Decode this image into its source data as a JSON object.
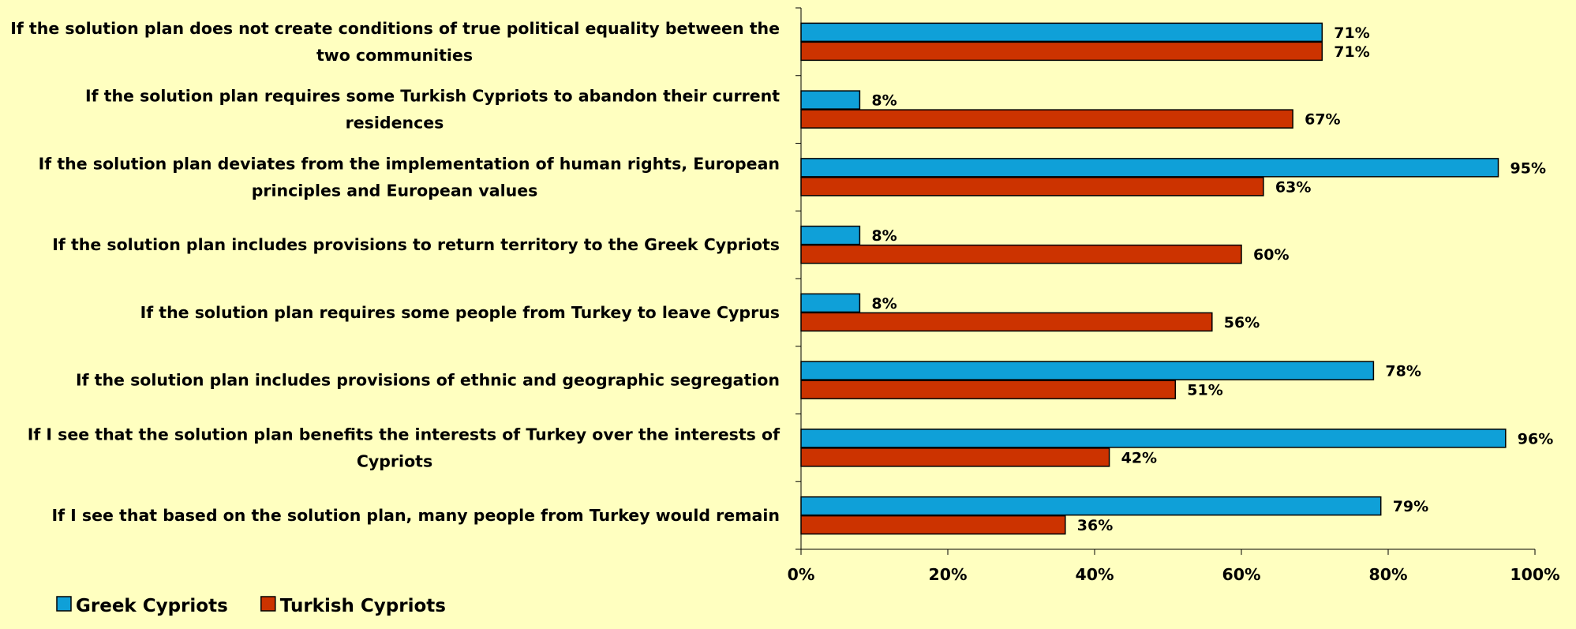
{
  "chart_data": {
    "type": "bar",
    "orientation": "horizontal",
    "categories": [
      [
        "If the solution plan does not create conditions of true political equality between the",
        "two communities"
      ],
      [
        "If the solution plan requires some Turkish Cypriots to abandon their current",
        "residences"
      ],
      [
        "If the solution plan deviates from the implementation of human rights, European",
        "principles and European values"
      ],
      [
        "If the solution plan includes provisions to return territory to the Greek Cypriots"
      ],
      [
        "If the solution plan requires some people from Turkey to leave Cyprus"
      ],
      [
        "If the solution plan includes provisions of ethnic and geographic segregation"
      ],
      [
        "If I see that the solution plan benefits the interests of Turkey over the interests of",
        "Cypriots"
      ],
      [
        "If I see that based on the solution plan, many people from Turkey would remain"
      ]
    ],
    "series": [
      {
        "name": "Greek Cypriots",
        "color": "#0FA0D8",
        "values": [
          71,
          8,
          95,
          8,
          8,
          78,
          96,
          79
        ]
      },
      {
        "name": "Turkish Cypriots",
        "color": "#CC3300",
        "values": [
          71,
          67,
          63,
          60,
          56,
          51,
          42,
          36
        ]
      }
    ],
    "value_suffix": "%",
    "xlim": [
      0,
      100
    ],
    "xticks": [
      "0%",
      "20%",
      "40%",
      "60%",
      "80%",
      "100%"
    ],
    "legend_position": "bottom-left",
    "grid": false,
    "background": "#FFFFC0"
  }
}
